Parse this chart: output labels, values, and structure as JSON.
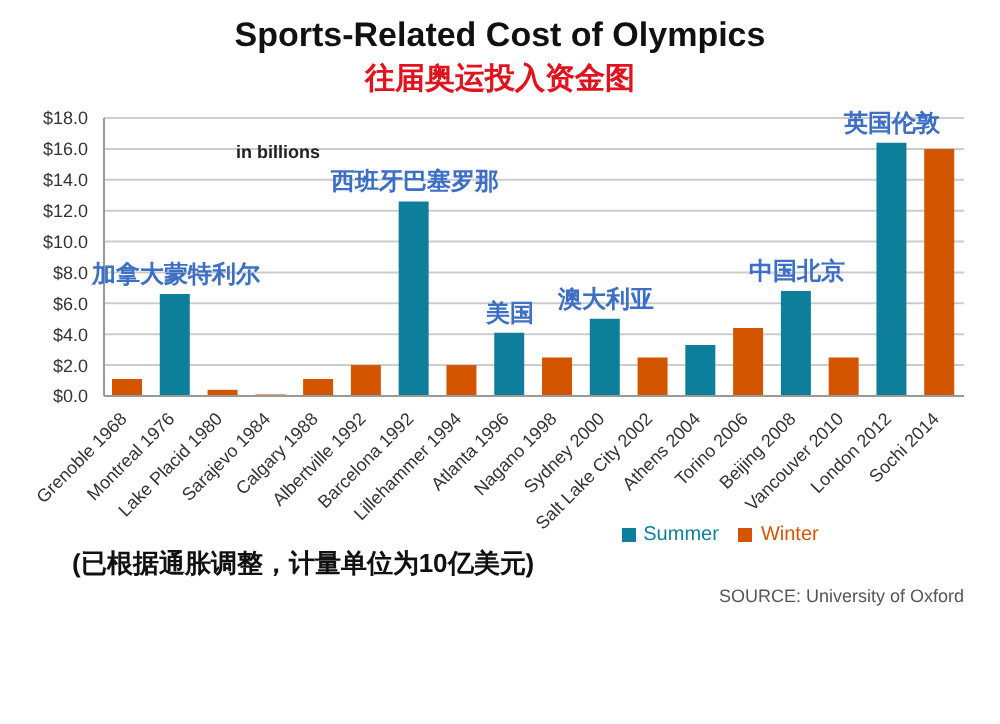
{
  "chart_data": {
    "type": "bar",
    "title": "Sports-Related Cost of Olympics",
    "subtitle": "往届奥运投入资金图",
    "categories": [
      "Grenoble 1968",
      "Montreal 1976",
      "Lake Placid 1980",
      "Sarajevo 1984",
      "Calgary 1988",
      "Albertville 1992",
      "Barcelona 1992",
      "Lillehammer 1994",
      "Atlanta 1996",
      "Nagano 1998",
      "Sydney 2000",
      "Salt Lake City 2002",
      "Athens 2004",
      "Torino 2006",
      "Beijing 2008",
      "Vancouver 2010",
      "London 2012",
      "Sochi 2014"
    ],
    "series": [
      {
        "name": "Summer",
        "color": "#0e7f9b",
        "values": [
          null,
          6.6,
          null,
          null,
          null,
          null,
          12.6,
          null,
          4.1,
          null,
          5.0,
          null,
          3.3,
          null,
          6.8,
          null,
          16.4,
          null
        ]
      },
      {
        "name": "Winter",
        "color": "#d35500",
        "values": [
          1.1,
          null,
          0.4,
          0.1,
          1.1,
          2.0,
          null,
          2.0,
          null,
          2.5,
          null,
          2.5,
          null,
          4.4,
          null,
          2.5,
          null,
          16.0
        ]
      }
    ],
    "ylim": [
      0,
      18
    ],
    "yticks": [
      {
        "value": 0,
        "label": "$0.0"
      },
      {
        "value": 2,
        "label": "$2.0"
      },
      {
        "value": 4,
        "label": "$4.0"
      },
      {
        "value": 6,
        "label": "$6.0"
      },
      {
        "value": 8,
        "label": "$8.0"
      },
      {
        "value": 10,
        "label": "$10.0"
      },
      {
        "value": 12,
        "label": "$12.0"
      },
      {
        "value": 14,
        "label": "$14.0"
      },
      {
        "value": 16,
        "label": "$16.0"
      },
      {
        "value": 18,
        "label": "$18.0"
      }
    ],
    "grid": "y",
    "legend": "bottom",
    "annotations": [
      "in billions",
      "(已根据通胀调整，计量单位为10亿美元)",
      "SOURCE: University of Oxford",
      {
        "text": "加拿大蒙特利尔",
        "x": "Montreal 1976",
        "y": 6.6
      },
      {
        "text": "西班牙巴塞罗那",
        "x": "Barcelona 1992",
        "y": 12.6
      },
      {
        "text": "美国",
        "x": "Atlanta 1996",
        "y": 4.1
      },
      {
        "text": "澳大利亚",
        "x": "Sydney 2000",
        "y": 5.0
      },
      {
        "text": "中国北京",
        "x": "Beijing 2008",
        "y": 6.8
      },
      {
        "text": "英国伦敦",
        "x": "London 2012",
        "y": 16.4
      }
    ]
  }
}
